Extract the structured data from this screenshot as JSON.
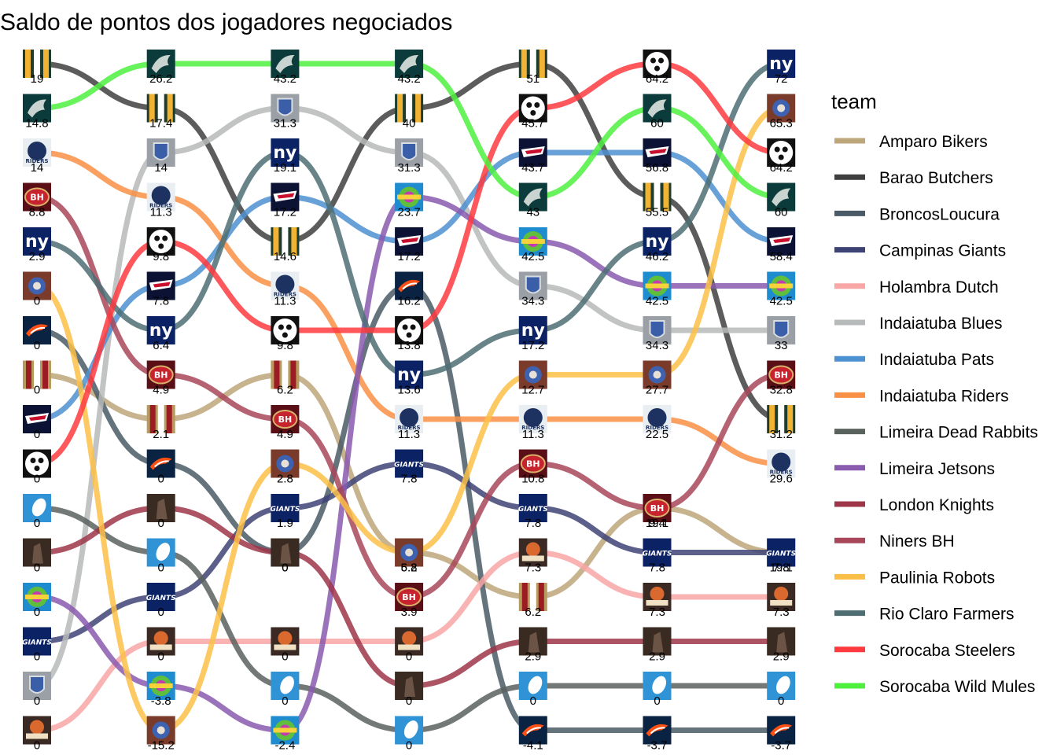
{
  "chart_data": {
    "type": "bump",
    "title": "Saldo de pontos dos jogadores negociados",
    "legend_title": "team",
    "legend_position": "right",
    "grid": false,
    "rounds": 7,
    "teams": [
      {
        "name": "Amparo Bikers",
        "color": "#BDA77A",
        "logo": "amparo-bikers-logo",
        "ranks": [
          8,
          9,
          8,
          12,
          13,
          11,
          12
        ],
        "values": [
          "0",
          "2.1",
          "6.2",
          "6.2",
          "6.2",
          "19.1",
          "19.1"
        ]
      },
      {
        "name": "Barao Butchers",
        "color": "#3F3F3F",
        "logo": "barao-butchers-logo",
        "ranks": [
          1,
          2,
          5,
          2,
          1,
          4,
          9
        ],
        "values": [
          "19",
          "17.4",
          "14.6",
          "40",
          "51",
          "55.5",
          "31.2"
        ]
      },
      {
        "name": "BroncosLoucura",
        "color": "#4A5A66",
        "logo": "broncos-logo",
        "ranks": [
          7,
          10,
          12,
          6,
          16,
          16,
          16
        ],
        "values": [
          "0",
          "0",
          "0",
          "16.2",
          "-4.1",
          "-3.7",
          "-3.7"
        ]
      },
      {
        "name": "Campinas Giants",
        "color": "#3E4375",
        "logo": "giants-logo",
        "ranks": [
          14,
          13,
          11,
          10,
          11,
          12,
          12
        ],
        "values": [
          "0",
          "0",
          "1.9",
          "7.8",
          "7.8",
          "7.8",
          "7.8"
        ]
      },
      {
        "name": "Holambra Dutch",
        "color": "#F9A6A6",
        "logo": "holambra-logo",
        "ranks": [
          16,
          14,
          14,
          14,
          12,
          13,
          13
        ],
        "values": [
          "0",
          "0",
          "0",
          "0",
          "7.3",
          "7.3",
          "7.3"
        ]
      },
      {
        "name": "Indaiatuba Blues",
        "color": "#B7BABA",
        "logo": "indaiatuba-blues-logo",
        "ranks": [
          15,
          3,
          2,
          3,
          6,
          7,
          7
        ],
        "values": [
          "0",
          "14",
          "31.3",
          "31.3",
          "34.3",
          "34.3",
          "33"
        ]
      },
      {
        "name": "Indaiatuba Pats",
        "color": "#4C91D1",
        "logo": "patriots-logo",
        "ranks": [
          9,
          6,
          4,
          5,
          3,
          3,
          5
        ],
        "values": [
          "0",
          "7.8",
          "17.2",
          "17.2",
          "43.7",
          "56.8",
          "58.4"
        ]
      },
      {
        "name": "Indaiatuba Riders",
        "color": "#F99045",
        "logo": "riders-logo",
        "ranks": [
          3,
          4,
          6,
          9,
          9,
          9,
          10
        ],
        "values": [
          "14",
          "11.3",
          "11.3",
          "11.3",
          "11.3",
          "22.5",
          "29.6"
        ]
      },
      {
        "name": "Limeira Dead Rabbits",
        "color": "#5A625E",
        "logo": "dead-rabbits-logo",
        "ranks": [
          11,
          12,
          15,
          16,
          15,
          15,
          15
        ],
        "values": [
          "0",
          "0",
          "0",
          "0",
          "0",
          "0",
          "0"
        ]
      },
      {
        "name": "Limeira Jetsons",
        "color": "#8A5BAF",
        "logo": "jetsons-logo",
        "ranks": [
          13,
          15,
          16,
          4,
          5,
          6,
          6
        ],
        "values": [
          "0",
          "-3.8",
          "-2.4",
          "23.7",
          "42.5",
          "42.5",
          "42.5"
        ]
      },
      {
        "name": "London Knights",
        "color": "#9E3549",
        "logo": "london-knights-logo",
        "ranks": [
          12,
          11,
          12,
          15,
          14,
          14,
          14
        ],
        "values": [
          "0",
          "0",
          "0",
          "0",
          "2.9",
          "2.9",
          "2.9"
        ]
      },
      {
        "name": "Niners BH",
        "color": "#A8475A",
        "logo": "niners-bh-logo",
        "ranks": [
          4,
          8,
          9,
          13,
          10,
          11,
          8
        ],
        "values": [
          "8.8",
          "4.9",
          "4.9",
          "3.9",
          "10.8",
          "9.4",
          "32.8"
        ]
      },
      {
        "name": "Paulinia Robots",
        "color": "#FBBF48",
        "logo": "paulinia-robots-logo",
        "ranks": [
          6,
          16,
          10,
          12,
          8,
          8,
          2
        ],
        "values": [
          "0",
          "-15.2",
          "2.8",
          "5.8",
          "12.7",
          "27.7",
          "65.3"
        ]
      },
      {
        "name": "Rio Claro Farmers",
        "color": "#4E6E74",
        "logo": "ny-logo",
        "ranks": [
          5,
          7,
          3,
          8,
          7,
          5,
          1
        ],
        "values": [
          "2.9",
          "6.4",
          "19.1",
          "13.6",
          "17.2",
          "46.2",
          "72"
        ]
      },
      {
        "name": "Sorocaba Steelers",
        "color": "#FE3A3F",
        "logo": "steelers-logo",
        "ranks": [
          10,
          5,
          7,
          7,
          2,
          1,
          3
        ],
        "values": [
          "0",
          "9.8",
          "9.8",
          "13.8",
          "45.7",
          "64.2",
          "64.2"
        ]
      },
      {
        "name": "Sorocaba Wild Mules",
        "color": "#4EF03E",
        "logo": "wild-mules-logo",
        "ranks": [
          2,
          1,
          1,
          1,
          4,
          2,
          4
        ],
        "values": [
          "14.8",
          "26.2",
          "43.2",
          "43.2",
          "43",
          "60",
          "60"
        ]
      }
    ]
  }
}
